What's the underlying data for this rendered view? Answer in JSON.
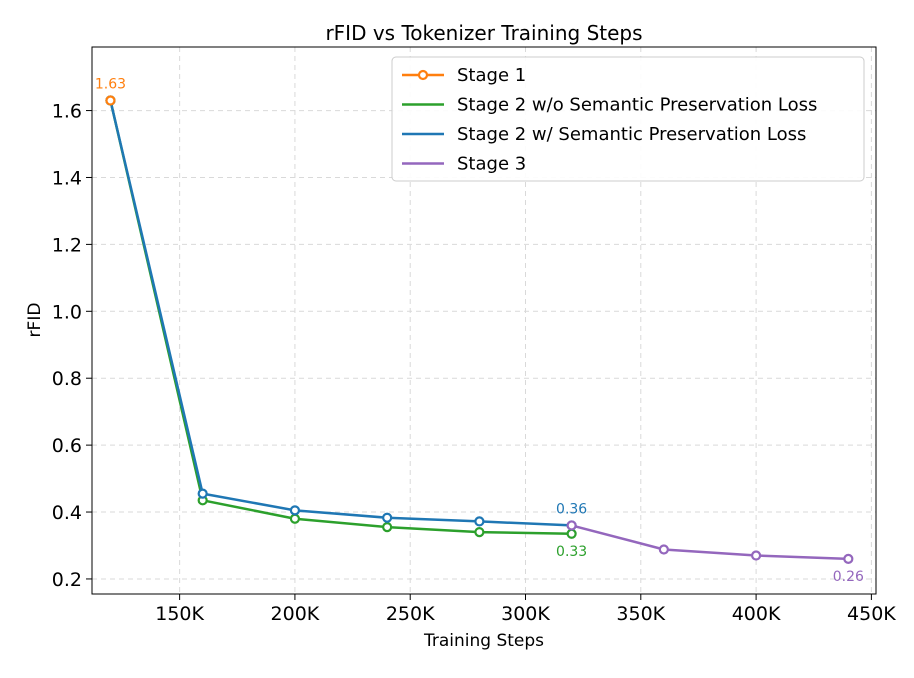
{
  "chart_data": {
    "type": "line",
    "title": "rFID vs Tokenizer Training Steps",
    "xlabel": "Training Steps",
    "ylabel": "rFID",
    "xlim": [
      112000,
      452000
    ],
    "ylim": [
      0.155,
      1.79
    ],
    "xticks": [
      150000,
      200000,
      250000,
      300000,
      350000,
      400000,
      450000
    ],
    "xtick_labels": [
      "150K",
      "200K",
      "250K",
      "300K",
      "350K",
      "400K",
      "450K"
    ],
    "yticks": [
      0.2,
      0.4,
      0.6,
      0.8,
      1.0,
      1.2,
      1.4,
      1.6
    ],
    "ytick_labels": [
      "0.2",
      "0.4",
      "0.6",
      "0.8",
      "1.0",
      "1.2",
      "1.4",
      "1.6"
    ],
    "grid": true,
    "legend_position": "top-right",
    "series": [
      {
        "name": "Stage 1",
        "color": "#ff7f0e",
        "marker": "open-circle",
        "x": [
          120000
        ],
        "y": [
          1.63
        ]
      },
      {
        "name": "Stage 2 w/o Semantic Preservation Loss",
        "color": "#2ca02c",
        "marker": "open-circle",
        "x": [
          120000,
          160000,
          200000,
          240000,
          280000,
          320000
        ],
        "y": [
          1.63,
          0.435,
          0.38,
          0.355,
          0.34,
          0.335
        ]
      },
      {
        "name": "Stage 2 w/ Semantic Preservation Loss",
        "color": "#1f77b4",
        "marker": "open-circle",
        "x": [
          120000,
          160000,
          200000,
          240000,
          280000,
          320000
        ],
        "y": [
          1.63,
          0.455,
          0.405,
          0.383,
          0.372,
          0.36
        ]
      },
      {
        "name": "Stage 3",
        "color": "#9467bd",
        "marker": "open-circle",
        "x": [
          320000,
          360000,
          400000,
          440000
        ],
        "y": [
          0.36,
          0.288,
          0.27,
          0.26
        ]
      }
    ],
    "annotations": [
      {
        "text": "1.63",
        "x": 120000,
        "y": 1.63,
        "color": "#ff7f0e",
        "placement": "above"
      },
      {
        "text": "0.36",
        "x": 320000,
        "y": 0.36,
        "color": "#1f77b4",
        "placement": "above"
      },
      {
        "text": "0.33",
        "x": 320000,
        "y": 0.335,
        "color": "#2ca02c",
        "placement": "below"
      },
      {
        "text": "0.26",
        "x": 440000,
        "y": 0.26,
        "color": "#9467bd",
        "placement": "below"
      }
    ]
  }
}
